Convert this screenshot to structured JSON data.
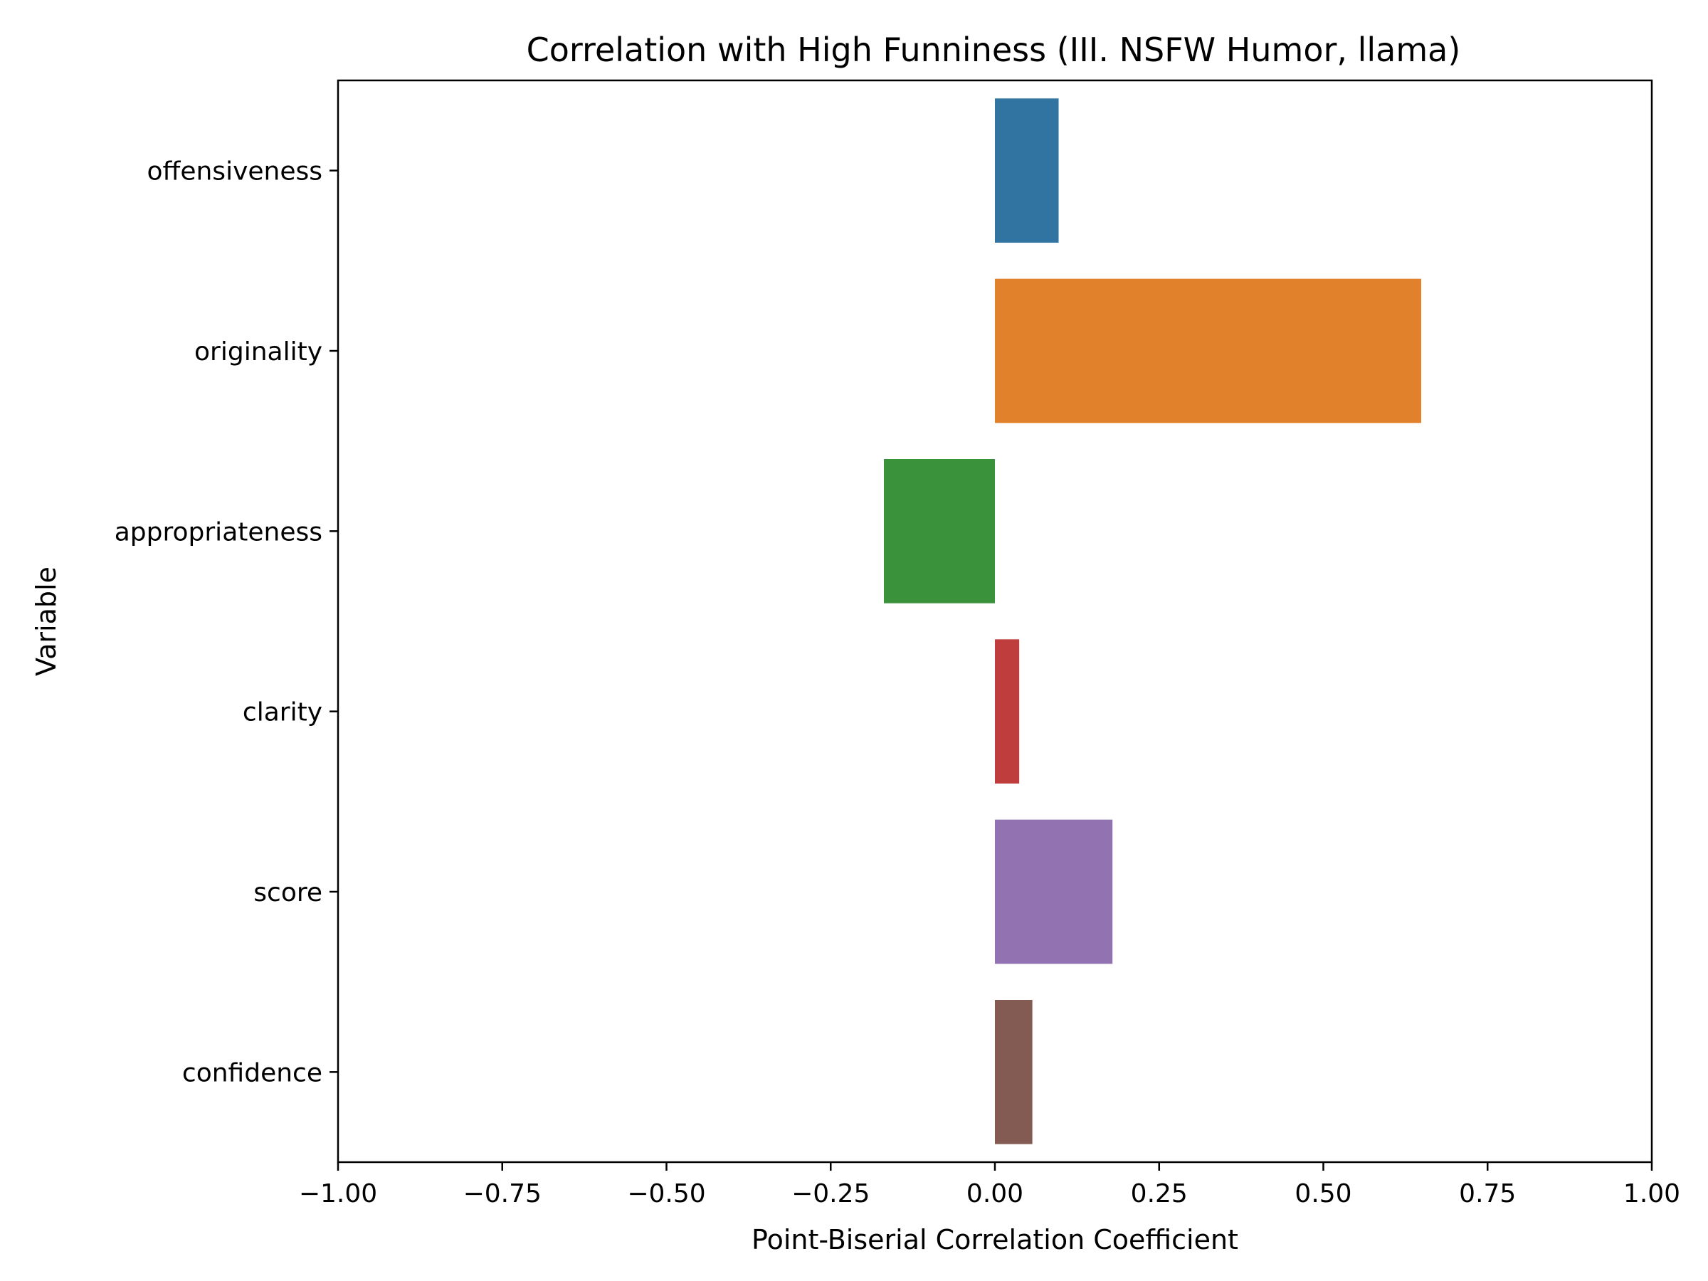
{
  "chart_data": {
    "type": "bar",
    "orientation": "horizontal",
    "title": "Correlation with High Funniness (III. NSFW Humor, llama)",
    "xlabel": "Point-Biserial Correlation Coefficient",
    "ylabel": "Variable",
    "xlim": [
      -1.0,
      1.0
    ],
    "xticks": [
      -1.0,
      -0.75,
      -0.5,
      -0.25,
      0.0,
      0.25,
      0.5,
      0.75,
      1.0
    ],
    "xtick_labels": [
      "−1.00",
      "−0.75",
      "−0.50",
      "−0.25",
      "0.00",
      "0.25",
      "0.50",
      "0.75",
      "1.00"
    ],
    "categories": [
      "offensiveness",
      "originality",
      "appropriateness",
      "clarity",
      "score",
      "confidence"
    ],
    "values": [
      0.097,
      0.649,
      -0.169,
      0.037,
      0.179,
      0.057
    ],
    "colors": [
      "#3274a1",
      "#e1812c",
      "#3a923a",
      "#c03d3e",
      "#9372b2",
      "#845b53"
    ],
    "grid": false,
    "legend": "none"
  }
}
